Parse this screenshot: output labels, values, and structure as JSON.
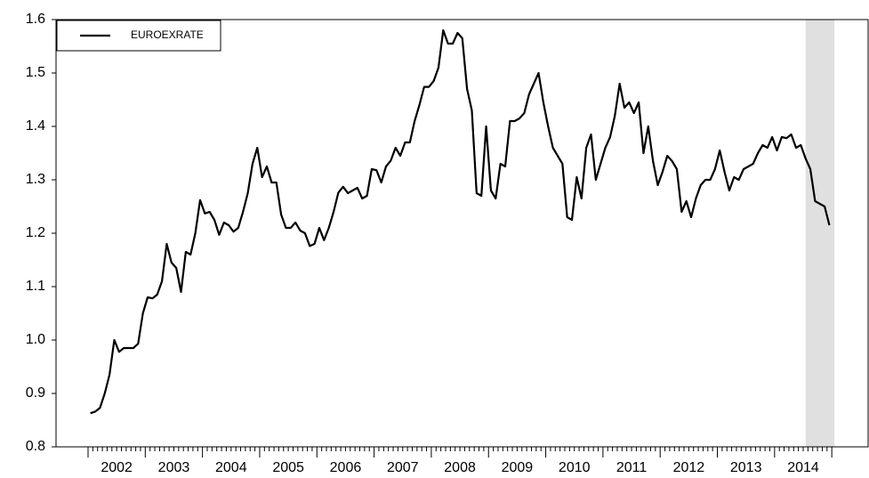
{
  "chart_data": {
    "type": "line",
    "categories": [
      null,
      null,
      null,
      null,
      null,
      null,
      "2002",
      null,
      null,
      null,
      null,
      null,
      null,
      null,
      null,
      null,
      null,
      null,
      "2003",
      null,
      null,
      null,
      null,
      null,
      null,
      null,
      null,
      null,
      null,
      null,
      "2004",
      null,
      null,
      null,
      null,
      null,
      null,
      null,
      null,
      null,
      null,
      null,
      "2005",
      null,
      null,
      null,
      null,
      null,
      null,
      null,
      null,
      null,
      null,
      null,
      "2006",
      null,
      null,
      null,
      null,
      null,
      null,
      null,
      null,
      null,
      null,
      null,
      "2007",
      null,
      null,
      null,
      null,
      null,
      null,
      null,
      null,
      null,
      null,
      null,
      "2008",
      null,
      null,
      null,
      null,
      null,
      null,
      null,
      null,
      null,
      null,
      null,
      "2009",
      null,
      null,
      null,
      null,
      null,
      null,
      null,
      null,
      null,
      null,
      null,
      "2010",
      null,
      null,
      null,
      null,
      null,
      null,
      null,
      null,
      null,
      null,
      null,
      "2011",
      null,
      null,
      null,
      null,
      null,
      null,
      null,
      null,
      null,
      null,
      null,
      "2012",
      null,
      null,
      null,
      null,
      null,
      null,
      null,
      null,
      null,
      null,
      null,
      "2013",
      null,
      null,
      null,
      null,
      null,
      null,
      null,
      null,
      null,
      null,
      null,
      "2014",
      null,
      null,
      null,
      null,
      null
    ],
    "series": [
      {
        "name": "EUROEXRATE",
        "color": "#000000",
        "values": [
          0.863,
          0.866,
          0.873,
          0.9,
          0.935,
          1.0,
          0.978,
          0.985,
          0.985,
          0.985,
          0.993,
          1.05,
          1.08,
          1.078,
          1.085,
          1.11,
          1.18,
          1.145,
          1.135,
          1.09,
          1.165,
          1.16,
          1.2,
          1.262,
          1.237,
          1.24,
          1.225,
          1.197,
          1.22,
          1.215,
          1.203,
          1.21,
          1.24,
          1.275,
          1.33,
          1.36,
          1.305,
          1.325,
          1.295,
          1.295,
          1.235,
          1.21,
          1.21,
          1.22,
          1.205,
          1.2,
          1.176,
          1.18,
          1.21,
          1.187,
          1.21,
          1.24,
          1.276,
          1.287,
          1.275,
          1.28,
          1.285,
          1.265,
          1.27,
          1.32,
          1.318,
          1.295,
          1.325,
          1.336,
          1.36,
          1.345,
          1.37,
          1.37,
          1.41,
          1.44,
          1.474,
          1.474,
          1.485,
          1.51,
          1.58,
          1.555,
          1.555,
          1.575,
          1.565,
          1.47,
          1.43,
          1.275,
          1.27,
          1.4,
          1.28,
          1.265,
          1.33,
          1.325,
          1.41,
          1.41,
          1.415,
          1.425,
          1.46,
          1.48,
          1.5,
          1.445,
          1.4,
          1.36,
          1.345,
          1.33,
          1.23,
          1.225,
          1.305,
          1.265,
          1.36,
          1.385,
          1.3,
          1.33,
          1.36,
          1.38,
          1.42,
          1.48,
          1.435,
          1.445,
          1.425,
          1.445,
          1.35,
          1.4,
          1.335,
          1.29,
          1.315,
          1.345,
          1.335,
          1.32,
          1.24,
          1.26,
          1.23,
          1.265,
          1.29,
          1.3,
          1.3,
          1.32,
          1.355,
          1.315,
          1.28,
          1.305,
          1.3,
          1.32,
          1.325,
          1.33,
          1.35,
          1.365,
          1.36,
          1.38,
          1.355,
          1.38,
          1.378,
          1.385,
          1.36,
          1.365,
          1.34,
          1.32,
          1.26,
          1.255,
          1.25,
          1.215
        ]
      }
    ],
    "ylim": [
      0.8,
      1.6
    ],
    "yticks": [
      0.8,
      0.9,
      {
        "value": 1,
        "label": "1.0"
      },
      1.1,
      1.2,
      1.3,
      1.4,
      1.5,
      1.6
    ],
    "shade_start": 150,
    "shade_color": "#e0e0e0",
    "legend": "top-left",
    "grid": false
  }
}
